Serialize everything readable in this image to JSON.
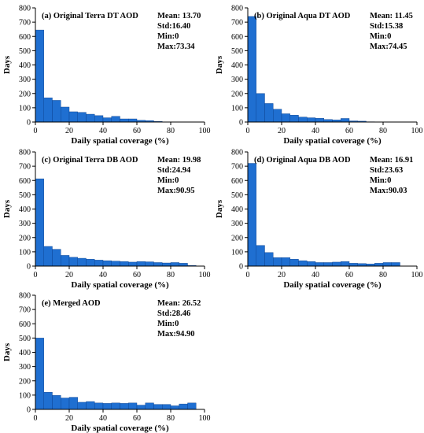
{
  "chart_data": [
    {
      "type": "bar",
      "title": "(a) Original Terra DT AOD",
      "stats": [
        "Mean: 13.70",
        "Std:16.40",
        "Min:0",
        "Max:73.34"
      ],
      "xlabel": "Daily spatial coverage (%)",
      "ylabel": "Days",
      "xlim": [
        0,
        100
      ],
      "ylim": [
        0,
        800
      ],
      "xticks": [
        0,
        20,
        40,
        60,
        80,
        100
      ],
      "yticks": [
        0,
        100,
        200,
        300,
        400,
        500,
        600,
        700,
        800
      ],
      "bin_width": 5,
      "x": [
        0,
        5,
        10,
        15,
        20,
        25,
        30,
        35,
        40,
        45,
        50,
        55,
        60,
        65,
        70,
        75
      ],
      "values": [
        645,
        170,
        152,
        105,
        72,
        68,
        55,
        45,
        30,
        40,
        22,
        22,
        12,
        10,
        4,
        1
      ]
    },
    {
      "type": "bar",
      "title": "(b) Original Aqua DT AOD",
      "stats": [
        "Mean: 11.45",
        "Std:15.38",
        "Min:0",
        "Max:74.45"
      ],
      "xlabel": "Daily spatial coverage (%)",
      "ylabel": "Days",
      "xlim": [
        0,
        100
      ],
      "ylim": [
        0,
        800
      ],
      "xticks": [
        0,
        20,
        40,
        60,
        80,
        100
      ],
      "yticks": [
        0,
        100,
        200,
        300,
        400,
        500,
        600,
        700,
        800
      ],
      "bin_width": 5,
      "x": [
        0,
        5,
        10,
        15,
        20,
        25,
        30,
        35,
        40,
        45,
        50,
        55,
        60,
        65,
        70
      ],
      "values": [
        740,
        200,
        130,
        90,
        58,
        48,
        35,
        30,
        26,
        18,
        15,
        25,
        8,
        6,
        2
      ]
    },
    {
      "type": "bar",
      "title": "(c) Original Terra DB AOD",
      "stats": [
        "Mean: 19.98",
        "Std:24.94",
        "Min:0",
        "Max:90.95"
      ],
      "xlabel": "Daily spatial coverage (%)",
      "ylabel": "Days",
      "xlim": [
        0,
        100
      ],
      "ylim": [
        0,
        800
      ],
      "xticks": [
        0,
        20,
        40,
        60,
        80,
        100
      ],
      "yticks": [
        0,
        100,
        200,
        300,
        400,
        500,
        600,
        700,
        800
      ],
      "bin_width": 5,
      "x": [
        0,
        5,
        10,
        15,
        20,
        25,
        30,
        35,
        40,
        45,
        50,
        55,
        60,
        65,
        70,
        75,
        80,
        85,
        90
      ],
      "values": [
        612,
        138,
        118,
        75,
        62,
        55,
        48,
        42,
        38,
        35,
        32,
        28,
        32,
        30,
        25,
        22,
        25,
        20,
        5
      ]
    },
    {
      "type": "bar",
      "title": "(d) Original Aqua DB AOD",
      "stats": [
        "Mean: 16.91",
        "Std:23.63",
        "Min:0",
        "Max:90.03"
      ],
      "xlabel": "Daily spatial coverage (%)",
      "ylabel": "Days",
      "xlim": [
        0,
        100
      ],
      "ylim": [
        0,
        800
      ],
      "xticks": [
        0,
        20,
        40,
        60,
        80,
        100
      ],
      "yticks": [
        0,
        100,
        200,
        300,
        400,
        500,
        600,
        700,
        800
      ],
      "bin_width": 5,
      "x": [
        0,
        5,
        10,
        15,
        20,
        25,
        30,
        35,
        40,
        45,
        50,
        55,
        60,
        65,
        70,
        75,
        80,
        85
      ],
      "values": [
        720,
        145,
        95,
        60,
        60,
        48,
        38,
        32,
        25,
        25,
        28,
        32,
        20,
        18,
        15,
        20,
        25,
        25
      ]
    },
    {
      "type": "bar",
      "title": "(e) Merged AOD",
      "stats": [
        "Mean: 26.52",
        "Std:28.46",
        "Min:0",
        "Max:94.90"
      ],
      "xlabel": "Daily spatial coverage (%)",
      "ylabel": "Days",
      "xlim": [
        0,
        100
      ],
      "ylim": [
        0,
        800
      ],
      "xticks": [
        0,
        20,
        40,
        60,
        80,
        100
      ],
      "yticks": [
        0,
        100,
        200,
        300,
        400,
        500,
        600,
        700,
        800
      ],
      "bin_width": 5,
      "x": [
        0,
        5,
        10,
        15,
        20,
        25,
        30,
        35,
        40,
        45,
        50,
        55,
        60,
        65,
        70,
        75,
        80,
        85,
        90
      ],
      "values": [
        500,
        120,
        98,
        80,
        85,
        50,
        55,
        45,
        42,
        45,
        42,
        45,
        30,
        45,
        35,
        35,
        25,
        38,
        45
      ]
    }
  ],
  "colors": {
    "bar_fill": "#1f6fd1",
    "bar_edge": "#0b3f8a",
    "axis": "#000000"
  }
}
